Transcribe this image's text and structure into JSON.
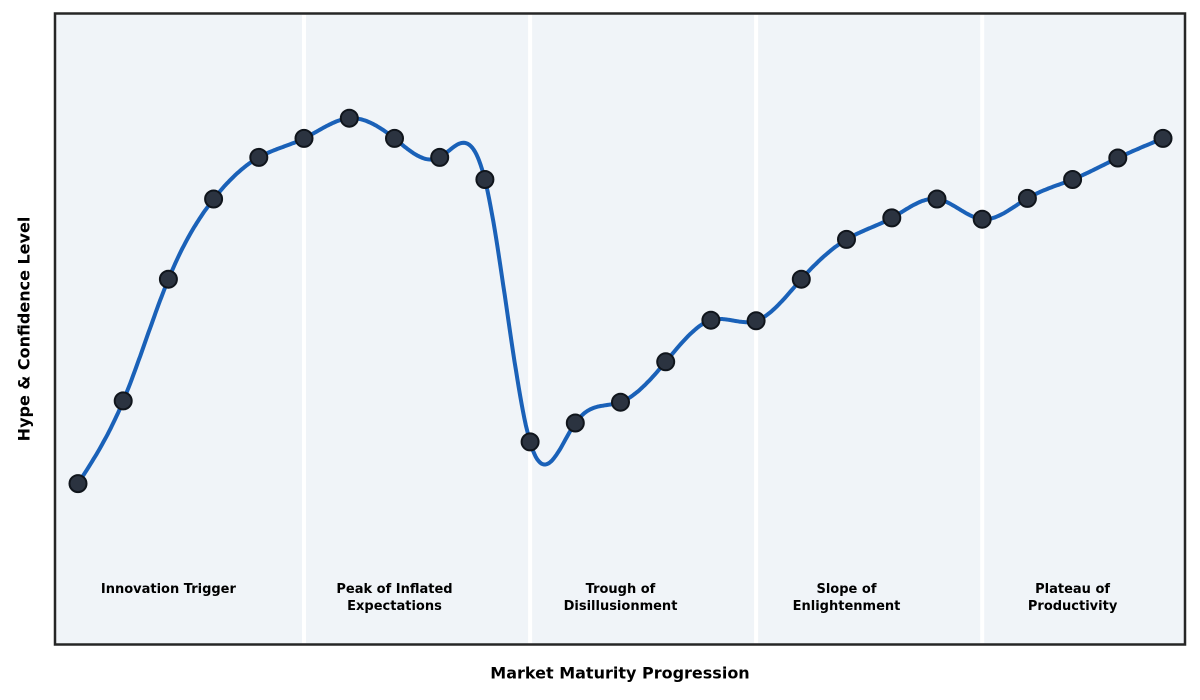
{
  "chart_data": {
    "type": "line",
    "curve": "natural-cubic-spline",
    "title": "",
    "xlabel": "Market Maturity Progression",
    "ylabel": "Hype & Confidence Level",
    "x": [
      0,
      1,
      2,
      3,
      4,
      5,
      6,
      7,
      8,
      9,
      10,
      11,
      12,
      13,
      14,
      15,
      16,
      17,
      18,
      19,
      20,
      21,
      22,
      23,
      24
    ],
    "values": [
      25.5,
      38.6,
      57.9,
      70.6,
      77.2,
      80.2,
      83.4,
      80.2,
      77.2,
      73.7,
      32.1,
      35.1,
      38.4,
      44.8,
      51.4,
      51.3,
      57.9,
      64.2,
      67.6,
      70.6,
      67.4,
      70.7,
      73.7,
      77.1,
      80.2
    ],
    "ylim": [
      0,
      100
    ],
    "xlim": [
      -0.5,
      24.5
    ],
    "grid": false,
    "axis_ticks": "none",
    "legend": "none",
    "phase_dividers_x": [
      5,
      10,
      15,
      20
    ],
    "phases": [
      {
        "label": "Innovation Trigger",
        "line1": "Innovation Trigger",
        "line2": "",
        "range": [
          0,
          5
        ],
        "label_x": 2
      },
      {
        "label": "Peak of Inflated Expectations",
        "line1": "Peak of Inflated",
        "line2": "Expectations",
        "range": [
          5,
          10
        ],
        "label_x": 7
      },
      {
        "label": "Trough of Disillusionment",
        "line1": "Trough of",
        "line2": "Disillusionment",
        "range": [
          10,
          15
        ],
        "label_x": 12
      },
      {
        "label": "Slope of Enlightenment",
        "line1": "Slope of",
        "line2": "Enlightenment",
        "range": [
          15,
          20
        ],
        "label_x": 17
      },
      {
        "label": "Plateau of Productivity",
        "line1": "Plateau of",
        "line2": "Productivity",
        "range": [
          20,
          25
        ],
        "label_x": 22
      }
    ],
    "colors": {
      "line": "#1a61b8",
      "marker_fill": "#2b3340",
      "marker_edge": "#10151c",
      "plot_background": "#f0f4f8",
      "divider": "#ffffff",
      "border": "#262626",
      "text": "#000000",
      "figure_background": "#ffffff"
    },
    "marker": {
      "shape": "circle",
      "radius": 8.5,
      "edge_width": 2
    },
    "line_width": 4
  }
}
